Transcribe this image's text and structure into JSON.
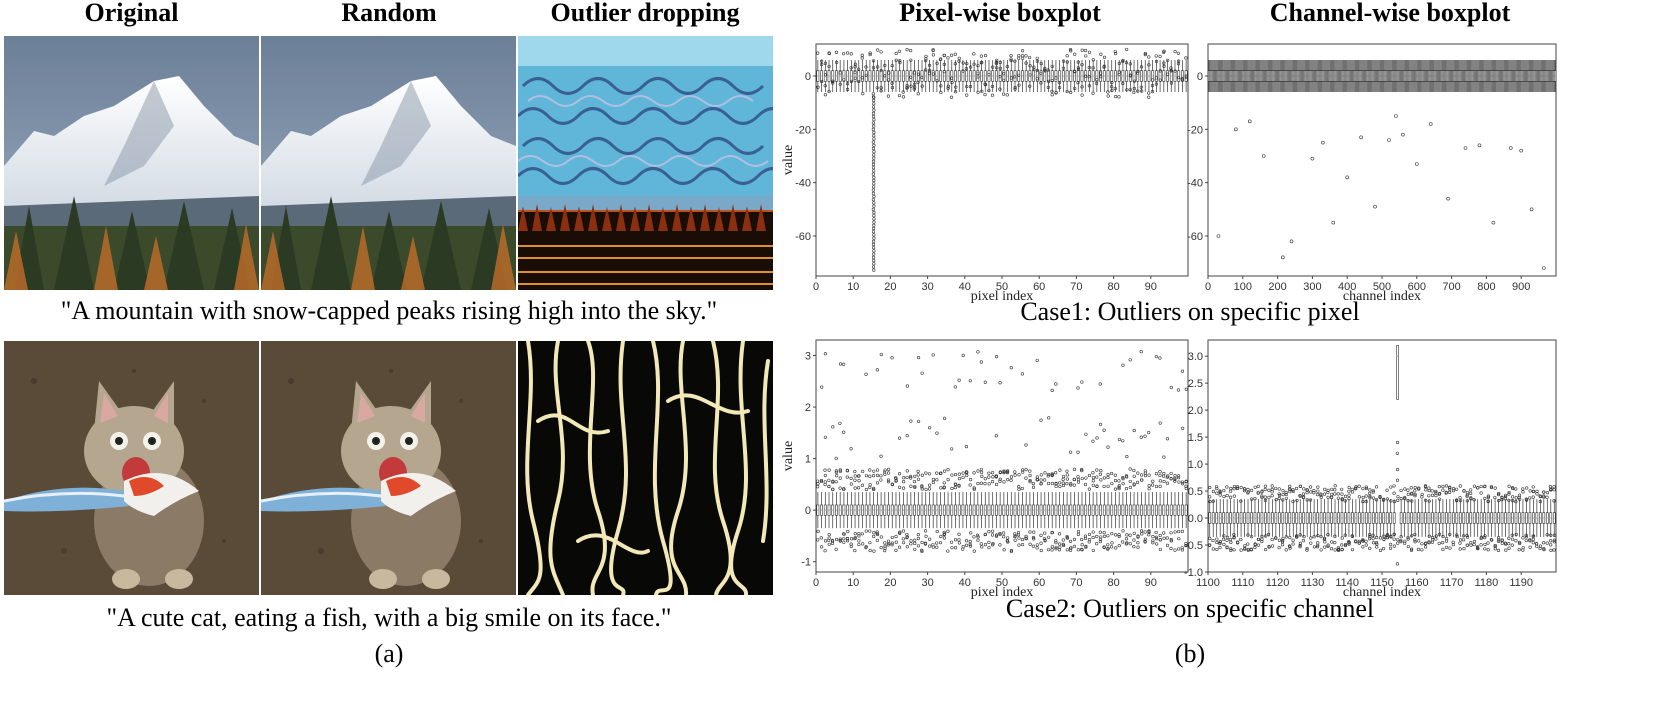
{
  "panel_a": {
    "column_headers": [
      "Original",
      "Random",
      "Outlier dropping"
    ],
    "row1_caption": "\"A mountain with snow-capped peaks rising high into the sky.\"",
    "row2_caption": "\"A cute cat, eating a fish, with a big smile on its face.\"",
    "label": "(a)"
  },
  "panel_b": {
    "column_headers": [
      "Pixel-wise boxplot",
      "Channel-wise boxplot"
    ],
    "case1_caption": "Case1: Outliers on specific pixel",
    "case2_caption": "Case2: Outliers on specific channel",
    "label": "(b)"
  },
  "chart_data": [
    {
      "id": "case1-pixel",
      "type": "boxplot",
      "title": "",
      "xlabel": "pixel index",
      "ylabel": "value",
      "xlim": [
        0,
        100
      ],
      "ylim": [
        -75,
        12
      ],
      "xticks": [
        0,
        10,
        20,
        30,
        40,
        50,
        60,
        70,
        80,
        90
      ],
      "yticks": [
        0,
        -20,
        -40,
        -60
      ],
      "n_boxes": 100,
      "box_median": 0,
      "box_q": [
        -2,
        2
      ],
      "whisker": [
        -6,
        6
      ],
      "outlier_spread": [
        -8,
        10
      ],
      "highlight": {
        "index": 15,
        "outliers_to": -73
      }
    },
    {
      "id": "case1-channel",
      "type": "boxplot",
      "title": "",
      "xlabel": "channel index",
      "ylabel": "",
      "xlim": [
        0,
        1000
      ],
      "ylim": [
        -75,
        12
      ],
      "xticks": [
        0,
        100,
        200,
        300,
        400,
        500,
        600,
        700,
        800,
        900
      ],
      "yticks": [
        0,
        -20,
        -40,
        -60
      ],
      "n_boxes": 320,
      "box_median": 0,
      "box_q": [
        -2,
        2
      ],
      "whisker": [
        -6,
        6
      ],
      "scattered_outliers": [
        [
          30,
          -60
        ],
        [
          80,
          -20
        ],
        [
          120,
          -17
        ],
        [
          160,
          -30
        ],
        [
          215,
          -68
        ],
        [
          240,
          -62
        ],
        [
          300,
          -31
        ],
        [
          330,
          -25
        ],
        [
          360,
          -55
        ],
        [
          400,
          -38
        ],
        [
          440,
          -23
        ],
        [
          480,
          -49
        ],
        [
          520,
          -24
        ],
        [
          540,
          -15
        ],
        [
          560,
          -22
        ],
        [
          600,
          -33
        ],
        [
          640,
          -18
        ],
        [
          690,
          -46
        ],
        [
          740,
          -27
        ],
        [
          780,
          -26
        ],
        [
          820,
          -55
        ],
        [
          870,
          -27
        ],
        [
          900,
          -28
        ],
        [
          930,
          -50
        ],
        [
          965,
          -72
        ]
      ]
    },
    {
      "id": "case2-pixel",
      "type": "boxplot",
      "title": "",
      "xlabel": "pixel index",
      "ylabel": "value",
      "xlim": [
        0,
        100
      ],
      "ylim": [
        -1.2,
        3.3
      ],
      "xticks": [
        0,
        10,
        20,
        30,
        40,
        50,
        60,
        70,
        80,
        90
      ],
      "yticks": [
        3,
        2,
        1,
        0,
        -1
      ],
      "n_boxes": 100,
      "box_median": 0,
      "box_q": [
        -0.1,
        0.1
      ],
      "whisker": [
        -0.35,
        0.35
      ],
      "outlier_bands": [
        [
          0.4,
          0.8
        ],
        [
          -0.8,
          -0.4
        ],
        [
          1.0,
          1.8
        ],
        [
          2.3,
          3.1
        ]
      ]
    },
    {
      "id": "case2-channel",
      "type": "boxplot",
      "title": "",
      "xlabel": "channel index",
      "ylabel": "",
      "xlim": [
        1100,
        1200
      ],
      "ylim": [
        -1.0,
        3.3
      ],
      "xticks": [
        1100,
        1110,
        1120,
        1130,
        1140,
        1150,
        1160,
        1170,
        1180,
        1190
      ],
      "yticks": [
        3.0,
        2.5,
        2.0,
        1.5,
        1.0,
        0.5,
        0.0,
        -0.5,
        -1.0
      ],
      "n_boxes": 100,
      "box_median": 0,
      "box_q": [
        -0.1,
        0.1
      ],
      "whisker": [
        -0.35,
        0.35
      ],
      "outlier_bands": [
        [
          0.3,
          0.6
        ],
        [
          -0.6,
          -0.3
        ]
      ],
      "highlight": {
        "index": 1154,
        "box": [
          2.2,
          3.2
        ],
        "median": 3.0,
        "outliers": [
          1.4,
          1.2,
          0.9,
          0.7,
          -0.85
        ]
      }
    }
  ]
}
